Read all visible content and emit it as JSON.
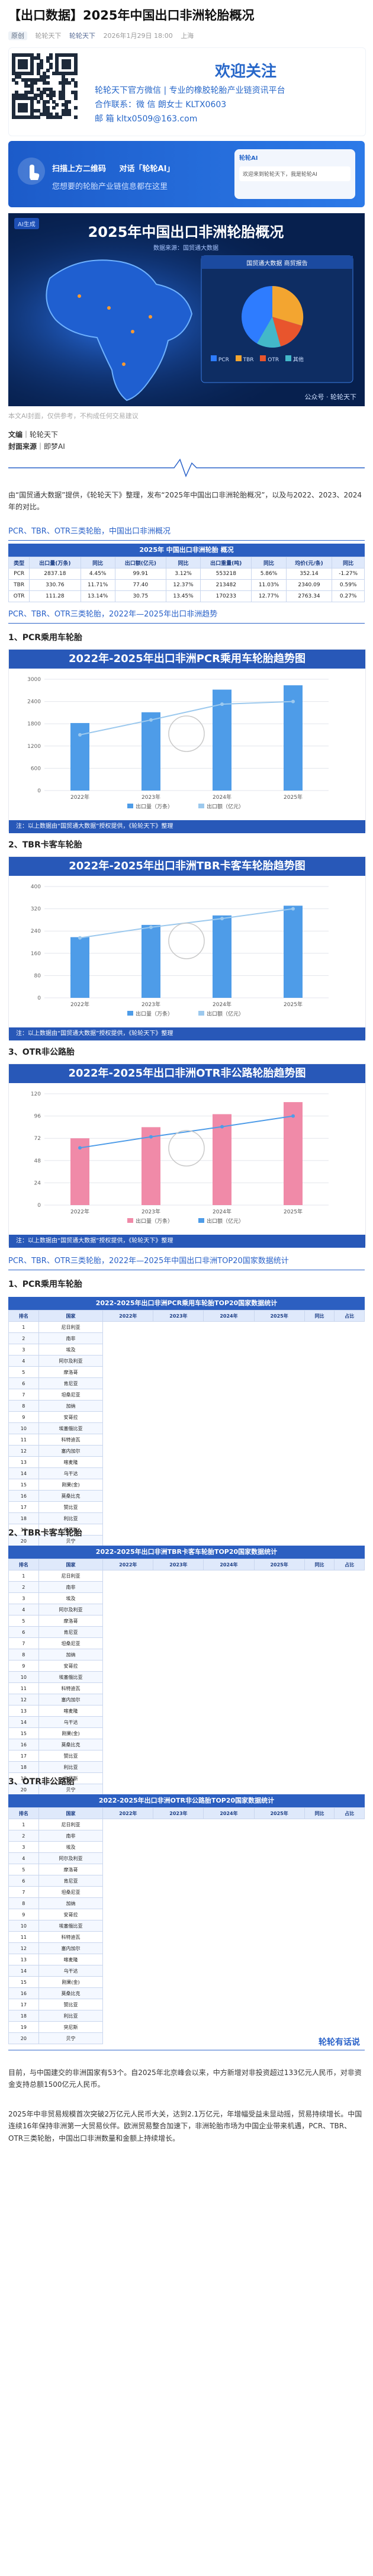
{
  "article": {
    "title": "【出口数据】2025年中国出口非洲轮胎概况",
    "tag": "原创",
    "author": "轮轮天下",
    "account": "轮轮天下",
    "time": "2026年1月29日 18:00",
    "location": "上海"
  },
  "welcome": {
    "heading": "欢迎关注",
    "line1": "轮轮天下官方微信 | 专业的橡胶轮胎产业链资讯平台",
    "line2": "合作联系：微  信  朗女士 KLTX0603",
    "line3": "邮  箱  kltx0509@163.com"
  },
  "promo": {
    "scan_text": "扫描上方二维码",
    "ai_text": "对话「轮轮AI」",
    "slogan": "您想要的轮胎产业链信息都在这里",
    "chat_title": "轮轮AI",
    "chat_line": "欢迎来到轮轮天下，我是轮轮AI"
  },
  "banner": {
    "badge": "AI生成",
    "title": "2025年中国出口非洲轮胎概况",
    "subtitle": "数据来源：国贸通大数据",
    "pie_title": "国贸通大数据 商贸报告",
    "legend": [
      "PCR",
      "TBR",
      "OTR",
      "其他"
    ],
    "watermark": "公众号 · 轮轮天下"
  },
  "image_caption": "本文AI封面，仅供参考，不构成任何交易建议",
  "source": {
    "label1": "文编",
    "val1": "轮轮天下",
    "label2": "封面来源",
    "val2": "即梦AI"
  },
  "intro": "由“国贸通大数据”提供，《轮轮天下》整理，发布“2025年中国出口非洲轮胎概况”，以及与2022、2023、2024年的对比。",
  "section1": {
    "bar": "PCR、TBR、OTR三类轮胎，中国出口非洲概况",
    "table_title": "2025年 中国出口非洲轮胎 概况",
    "headers": [
      "类型",
      "出口量(万条)",
      "同比",
      "出口额(亿元)",
      "同比",
      "出口重量(吨)",
      "同比",
      "均价(元/条)",
      "同比"
    ],
    "rows": [
      [
        "PCR",
        "2837.18",
        "4.45%",
        "99.91",
        "3.12%",
        "553218",
        "5.86%",
        "352.14",
        "-1.27%"
      ],
      [
        "TBR",
        "330.76",
        "11.71%",
        "77.40",
        "12.37%",
        "213482",
        "11.03%",
        "2340.09",
        "0.59%"
      ],
      [
        "OTR",
        "111.28",
        "13.14%",
        "30.75",
        "13.45%",
        "170233",
        "12.77%",
        "2763.34",
        "0.27%"
      ]
    ]
  },
  "section2": {
    "bar": "PCR、TBR、OTR三类轮胎，2022年—2025年出口非洲趋势",
    "h1": "1、PCR乘用车轮胎",
    "h2": "2、TBR卡客车轮胎",
    "h3": "3、OTR非公路胎",
    "foot": "注：以上数据由“国贸通大数据”授权提供，《轮轮天下》整理"
  },
  "chart_data": [
    {
      "type": "bar",
      "title": "2022年-2025年出口非洲PCR乘用车轮胎趋势图",
      "categories": [
        "2022年",
        "2023年",
        "2024年",
        "2025年"
      ],
      "series": [
        {
          "name": "出口量（万条）",
          "values": [
            1820,
            2110,
            2720,
            2837
          ]
        },
        {
          "name": "出口额（亿元）",
          "values": [
            62.5,
            79.2,
            96.9,
            99.9
          ]
        }
      ],
      "ylim": [
        0,
        3000
      ]
    },
    {
      "type": "bar",
      "title": "2022年-2025年出口非洲TBR卡客车轮胎趋势图",
      "categories": [
        "2022年",
        "2023年",
        "2024年",
        "2025年"
      ],
      "series": [
        {
          "name": "出口量（万条）",
          "values": [
            218,
            262,
            296,
            331
          ]
        },
        {
          "name": "出口额（亿元）",
          "values": [
            52.1,
            61.3,
            68.9,
            77.4
          ]
        }
      ],
      "ylim": [
        0,
        400
      ]
    },
    {
      "type": "bar",
      "title": "2022年-2025年出口非洲OTR非公路轮胎趋势图",
      "categories": [
        "2022年",
        "2023年",
        "2024年",
        "2025年"
      ],
      "series": [
        {
          "name": "出口量（万条）",
          "values": [
            72,
            84,
            98,
            111
          ]
        },
        {
          "name": "出口额（亿元）",
          "values": [
            19.8,
            23.6,
            27.1,
            30.8
          ]
        }
      ],
      "ylim": [
        0,
        120
      ]
    }
  ],
  "section3": {
    "bar": "PCR、TBR、OTR三类轮胎，2022年—2025年中国出口非洲TOP20国家数据统计",
    "h1": "1、PCR乘用车轮胎",
    "h2": "2、TBR卡客车轮胎",
    "h3": "3、OTR非公路胎",
    "t1": "2022-2025年出口非洲PCR乘用车轮胎TOP20国家数据统计",
    "t2": "2022-2025年出口非洲TBR卡客车轮胎TOP20国家数据统计",
    "t3": "2022-2025年出口非洲OTR非公路胎TOP20国家数据统计",
    "headers": [
      "排名",
      "国家",
      "2022年",
      "2023年",
      "2024年",
      "2025年",
      "同比",
      "占比"
    ],
    "countries": [
      "尼日利亚",
      "南非",
      "埃及",
      "阿尔及利亚",
      "摩洛哥",
      "肯尼亚",
      "坦桑尼亚",
      "加纳",
      "安哥拉",
      "埃塞俄比亚",
      "科特迪瓦",
      "塞内加尔",
      "喀麦隆",
      "乌干达",
      "刚果(金)",
      "莫桑比克",
      "赞比亚",
      "利比亚",
      "突尼斯",
      "贝宁"
    ]
  },
  "outro": {
    "heading": "轮轮有话说",
    "p1": "目前，与中国建交的非洲国家有53个。自2025年北京峰会以来，中方新增对非投资超过133亿元人民币，对非资金支持总额1500亿元人民币。",
    "p2": "2025年中非贸易规模首次突破2万亿元人民币大关，达到2.1万亿元，年增幅受益未显动摇，贸易持续增长。中国连续16年保持非洲第一大贸易伙伴。欧洲贸易整合加速下，非洲轮胎市场为中国企业带来机遇，PCR、TBR、OTR三类轮胎，中国出口非洲数量和金额上持续增长。"
  }
}
